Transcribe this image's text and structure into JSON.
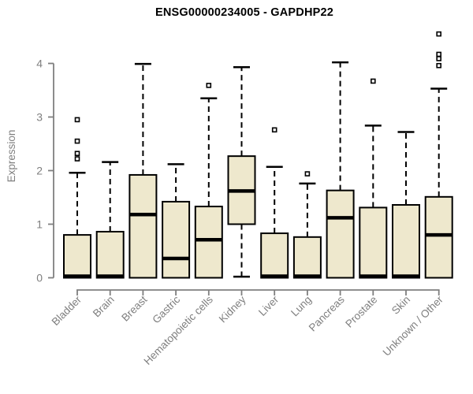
{
  "chart_data": {
    "type": "boxplot",
    "title": "ENSG00000234005 - GAPDHP22",
    "xlabel": "",
    "ylabel": "Expression",
    "ylim": [
      0,
      4
    ],
    "yticks": [
      0,
      1,
      2,
      3,
      4
    ],
    "grid": false,
    "legend": false,
    "categories": [
      "Bladder",
      "Brain",
      "Breast",
      "Gastric",
      "Hematopoietic cells",
      "Kidney",
      "Liver",
      "Lung",
      "Pancreas",
      "Prostate",
      "Skin",
      "Unknown / Other"
    ],
    "series": [
      {
        "category": "Bladder",
        "whisker_low": 0,
        "q1": 0,
        "median": 0.03,
        "q3": 0.8,
        "whisker_high": 1.96,
        "outliers": [
          2.95,
          2.55,
          2.32,
          2.22
        ]
      },
      {
        "category": "Brain",
        "whisker_low": 0,
        "q1": 0,
        "median": 0.03,
        "q3": 0.86,
        "whisker_high": 2.16,
        "outliers": []
      },
      {
        "category": "Breast",
        "whisker_low": 0,
        "q1": 0,
        "median": 1.18,
        "q3": 1.92,
        "whisker_high": 3.99,
        "outliers": []
      },
      {
        "category": "Gastric",
        "whisker_low": 0,
        "q1": 0,
        "median": 0.36,
        "q3": 1.42,
        "whisker_high": 2.12,
        "outliers": []
      },
      {
        "category": "Hematopoietic cells",
        "whisker_low": 0,
        "q1": 0,
        "median": 0.71,
        "q3": 1.33,
        "whisker_high": 3.35,
        "outliers": [
          3.59
        ]
      },
      {
        "category": "Kidney",
        "whisker_low": 0.02,
        "q1": 1.0,
        "median": 1.62,
        "q3": 2.27,
        "whisker_high": 3.93,
        "outliers": []
      },
      {
        "category": "Liver",
        "whisker_low": 0,
        "q1": 0,
        "median": 0.03,
        "q3": 0.83,
        "whisker_high": 2.07,
        "outliers": [
          2.76
        ]
      },
      {
        "category": "Lung",
        "whisker_low": 0,
        "q1": 0,
        "median": 0.03,
        "q3": 0.76,
        "whisker_high": 1.76,
        "outliers": [
          1.94
        ]
      },
      {
        "category": "Pancreas",
        "whisker_low": 0,
        "q1": 0,
        "median": 1.12,
        "q3": 1.63,
        "whisker_high": 4.02,
        "outliers": []
      },
      {
        "category": "Prostate",
        "whisker_low": 0,
        "q1": 0,
        "median": 0.03,
        "q3": 1.31,
        "whisker_high": 2.84,
        "outliers": [
          3.67
        ]
      },
      {
        "category": "Skin",
        "whisker_low": 0,
        "q1": 0,
        "median": 0.03,
        "q3": 1.36,
        "whisker_high": 2.72,
        "outliers": []
      },
      {
        "category": "Unknown / Other",
        "whisker_low": 0,
        "q1": 0,
        "median": 0.8,
        "q3": 1.51,
        "whisker_high": 3.53,
        "outliers": [
          4.55,
          4.17,
          4.09,
          3.96
        ]
      }
    ],
    "colors": {
      "box_fill": "#EEE8CD",
      "box_stroke": "#000000",
      "median": "#000000",
      "whisker": "#000000",
      "outlier_stroke": "#000000",
      "axis": "#7F7F7F",
      "tick_label": "#7F7F7F",
      "title": "#000000",
      "background": "#FFFFFF"
    }
  }
}
